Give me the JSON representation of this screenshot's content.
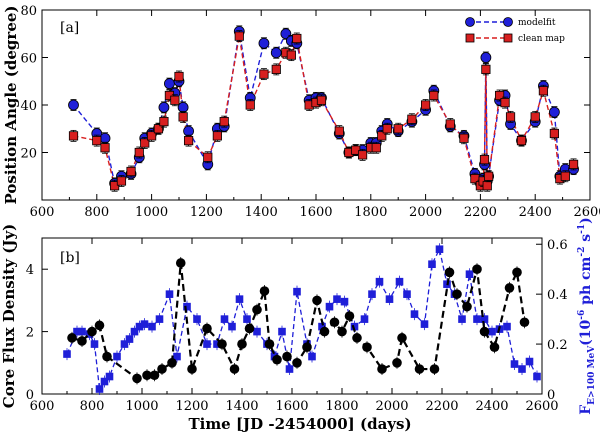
{
  "colors": {
    "modelfit": "#1f1fd8",
    "cleanmap": "#d81f1f",
    "core_flux": "#000000",
    "gamma": "#1f1fd8"
  },
  "chart_data": [
    {
      "type": "scatter",
      "panel_tag": "[a]",
      "xlabel": "",
      "ylabel": "Position Angle (degree)",
      "xlim": [
        600,
        2600
      ],
      "ylim": [
        0,
        80
      ],
      "xticks": [
        "600",
        "800",
        "1000",
        "1200",
        "1400",
        "1600",
        "1800",
        "2000",
        "2200",
        "2400",
        "2600"
      ],
      "yticks": [
        "20",
        "40",
        "60",
        "80"
      ],
      "ytick_values": [
        20,
        40,
        60,
        80
      ],
      "legend": {
        "position": "top-right",
        "entries": [
          "modelfit",
          "clean map"
        ]
      },
      "series": [
        {
          "name": "modelfit",
          "marker": "circle",
          "line": "dashed-blue",
          "x": [
            715,
            800,
            830,
            865,
            890,
            925,
            955,
            975,
            1000,
            1025,
            1045,
            1065,
            1085,
            1100,
            1115,
            1135,
            1205,
            1240,
            1265,
            1320,
            1360,
            1410,
            1455,
            1490,
            1510,
            1530,
            1575,
            1600,
            1620,
            1685,
            1720,
            1745,
            1770,
            1800,
            1820,
            1840,
            1860,
            1900,
            1950,
            2000,
            2030,
            2090,
            2140,
            2180,
            2200,
            2210,
            2215,
            2220,
            2225,
            2230,
            2270,
            2290,
            2310,
            2350,
            2400,
            2430,
            2470,
            2490,
            2510,
            2540
          ],
          "values": [
            40,
            28,
            26,
            7,
            10,
            11,
            18,
            26,
            28,
            30,
            39,
            49,
            45,
            50,
            39,
            29,
            15,
            30,
            31,
            71,
            43,
            66,
            62,
            70,
            67,
            66,
            42,
            43,
            43,
            28,
            20,
            21,
            21,
            24,
            24,
            29,
            32,
            29,
            33,
            38,
            46,
            31,
            27,
            11,
            7,
            9,
            15,
            60,
            8,
            10,
            42,
            44,
            32,
            25,
            33,
            48,
            37,
            10,
            13,
            13
          ]
        },
        {
          "name": "clean map",
          "marker": "square",
          "line": "dashed-red",
          "x": [
            715,
            800,
            830,
            865,
            890,
            925,
            955,
            975,
            1000,
            1025,
            1045,
            1065,
            1085,
            1100,
            1115,
            1135,
            1205,
            1240,
            1265,
            1320,
            1360,
            1410,
            1455,
            1490,
            1510,
            1530,
            1575,
            1600,
            1620,
            1685,
            1720,
            1745,
            1770,
            1800,
            1820,
            1840,
            1860,
            1900,
            1950,
            2000,
            2030,
            2090,
            2140,
            2180,
            2200,
            2210,
            2215,
            2220,
            2225,
            2230,
            2270,
            2290,
            2310,
            2350,
            2400,
            2430,
            2470,
            2490,
            2510,
            2540
          ],
          "values": [
            27,
            25,
            22,
            6,
            8,
            12,
            20,
            24,
            27,
            30,
            33,
            44,
            42,
            52,
            35,
            25,
            18,
            27,
            33,
            69,
            40,
            53,
            55,
            62,
            61,
            68,
            40,
            41,
            42,
            29,
            20,
            21,
            19,
            22,
            22,
            27,
            30,
            30,
            34,
            40,
            44,
            32,
            26,
            9,
            6,
            8,
            17,
            55,
            6,
            10,
            44,
            41,
            35,
            25,
            35,
            46,
            28,
            9,
            10,
            15
          ]
        }
      ]
    },
    {
      "type": "line",
      "panel_tag": "[b]",
      "xlabel": "Time [JD -2454000] (days)",
      "ylabel": "Core Flux Density (Jy)",
      "y2label_main": "F",
      "y2label_sub": "E>100 MeV",
      "y2label_tail": "(10",
      "y2label_exp1": "-6",
      "y2label_mid": " ph cm",
      "y2label_exp2": "-2",
      "y2label_s": " s",
      "y2label_exp3": "-1",
      "y2label_end": ")",
      "xlim": [
        600,
        2600
      ],
      "ylim": [
        0,
        5
      ],
      "y2lim": [
        0,
        0.625
      ],
      "xticks": [
        "600",
        "800",
        "1000",
        "1200",
        "1400",
        "1600",
        "1800",
        "2000",
        "2200",
        "2400",
        "2600"
      ],
      "yticks": [
        "0",
        "2",
        "4"
      ],
      "ytick_values": [
        0,
        2,
        4
      ],
      "y2ticks": [
        "0",
        "0.2",
        "0.4",
        "0.6"
      ],
      "y2tick_values": [
        0,
        0.2,
        0.4,
        0.6
      ],
      "series": [
        {
          "name": "Core Flux Density",
          "axis": "left",
          "marker": "circle",
          "line": "dashed-black",
          "x": [
            720,
            760,
            800,
            830,
            860,
            980,
            1020,
            1050,
            1080,
            1120,
            1155,
            1200,
            1260,
            1320,
            1370,
            1400,
            1430,
            1460,
            1490,
            1510,
            1540,
            1580,
            1620,
            1660,
            1700,
            1730,
            1770,
            1800,
            1830,
            1860,
            1900,
            1960,
            2020,
            2040,
            2110,
            2170,
            2230,
            2260,
            2300,
            2340,
            2370,
            2410,
            2470,
            2500,
            2530
          ],
          "values": [
            1.8,
            1.7,
            2.0,
            2.2,
            1.2,
            0.5,
            0.6,
            0.6,
            0.8,
            1.0,
            4.2,
            0.8,
            2.1,
            1.6,
            0.8,
            1.6,
            2.1,
            2.7,
            3.3,
            1.6,
            1.1,
            1.2,
            1.0,
            1.5,
            3.0,
            2.0,
            2.3,
            2.0,
            2.5,
            1.8,
            1.5,
            0.8,
            1.0,
            1.8,
            0.8,
            0.8,
            3.9,
            3.2,
            2.8,
            4.0,
            2.0,
            1.5,
            3.4,
            3.9,
            2.3
          ]
        },
        {
          "name": "F E>100 MeV",
          "axis": "right",
          "marker": "square",
          "line": "dashed-blue",
          "x": [
            700,
            740,
            760,
            790,
            810,
            830,
            850,
            870,
            900,
            930,
            950,
            970,
            990,
            1010,
            1040,
            1070,
            1110,
            1140,
            1180,
            1220,
            1260,
            1300,
            1330,
            1360,
            1390,
            1420,
            1460,
            1500,
            1530,
            1560,
            1590,
            1620,
            1660,
            1680,
            1720,
            1750,
            1780,
            1810,
            1850,
            1890,
            1920,
            1950,
            1990,
            2030,
            2060,
            2090,
            2130,
            2160,
            2190,
            2220,
            2250,
            2280,
            2310,
            2340,
            2370,
            2400,
            2430,
            2460,
            2490,
            2520,
            2550,
            2580
          ],
          "values": [
            0.16,
            0.25,
            0.25,
            0.24,
            0.2,
            0.02,
            0.05,
            0.07,
            0.15,
            0.2,
            0.22,
            0.25,
            0.27,
            0.28,
            0.27,
            0.3,
            0.4,
            0.15,
            0.35,
            0.3,
            0.2,
            0.2,
            0.3,
            0.27,
            0.38,
            0.3,
            0.25,
            0.2,
            0.15,
            0.25,
            0.1,
            0.41,
            0.2,
            0.15,
            0.27,
            0.35,
            0.38,
            0.37,
            0.27,
            0.3,
            0.4,
            0.45,
            0.38,
            0.45,
            0.4,
            0.32,
            0.28,
            0.52,
            0.58,
            0.44,
            0.4,
            0.3,
            0.48,
            0.3,
            0.3,
            0.25,
            0.26,
            0.27,
            0.12,
            0.1,
            0.13,
            0.07
          ]
        }
      ]
    }
  ]
}
